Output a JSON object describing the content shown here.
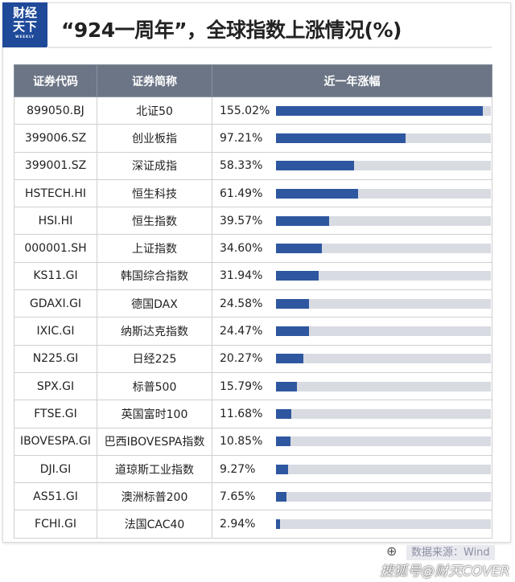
{
  "logo": {
    "line1": "财经",
    "line2": "天下",
    "sub": "WEEKLY"
  },
  "chart_data": {
    "type": "table",
    "title": "“924一周年”，全球指数上涨情况(%)",
    "columns": [
      "证券代码",
      "证券简称",
      "近一年涨幅"
    ],
    "max": 161,
    "rows": [
      {
        "code": "899050.BJ",
        "name": "北证50",
        "value": 155.02,
        "label": "155.02%"
      },
      {
        "code": "399006.SZ",
        "name": "创业板指",
        "value": 97.21,
        "label": "97.21%"
      },
      {
        "code": "399001.SZ",
        "name": "深证成指",
        "value": 58.33,
        "label": "58.33%"
      },
      {
        "code": "HSTECH.HI",
        "name": "恒生科技",
        "value": 61.49,
        "label": "61.49%"
      },
      {
        "code": "HSI.HI",
        "name": "恒生指数",
        "value": 39.57,
        "label": "39.57%"
      },
      {
        "code": "000001.SH",
        "name": "上证指数",
        "value": 34.6,
        "label": "34.60%"
      },
      {
        "code": "KS11.GI",
        "name": "韩国综合指数",
        "value": 31.94,
        "label": "31.94%"
      },
      {
        "code": "GDAXI.GI",
        "name": "德国DAX",
        "value": 24.58,
        "label": "24.58%"
      },
      {
        "code": "IXIC.GI",
        "name": "纳斯达克指数",
        "value": 24.47,
        "label": "24.47%"
      },
      {
        "code": "N225.GI",
        "name": "日经225",
        "value": 20.27,
        "label": "20.27%"
      },
      {
        "code": "SPX.GI",
        "name": "标普500",
        "value": 15.79,
        "label": "15.79%"
      },
      {
        "code": "FTSE.GI",
        "name": "英国富时100",
        "value": 11.68,
        "label": "11.68%"
      },
      {
        "code": "IBOVESPA.GI",
        "name": "巴西IBOVESPA指数",
        "value": 10.85,
        "label": "10.85%"
      },
      {
        "code": "DJI.GI",
        "name": "道琼斯工业指数",
        "value": 9.27,
        "label": "9.27%"
      },
      {
        "code": "AS51.GI",
        "name": "澳洲标普200",
        "value": 7.65,
        "label": "7.65%"
      },
      {
        "code": "FCHI.GI",
        "name": "法国CAC40",
        "value": 2.94,
        "label": "2.94%"
      }
    ]
  },
  "footer": {
    "source": "数据来源：Wind",
    "watermark": "搜狐号@财天COVER"
  },
  "colors": {
    "bar": "#2e57a0",
    "track": "#d9dbe2",
    "header": "#6c7586",
    "logo": "#1f4a9a"
  }
}
